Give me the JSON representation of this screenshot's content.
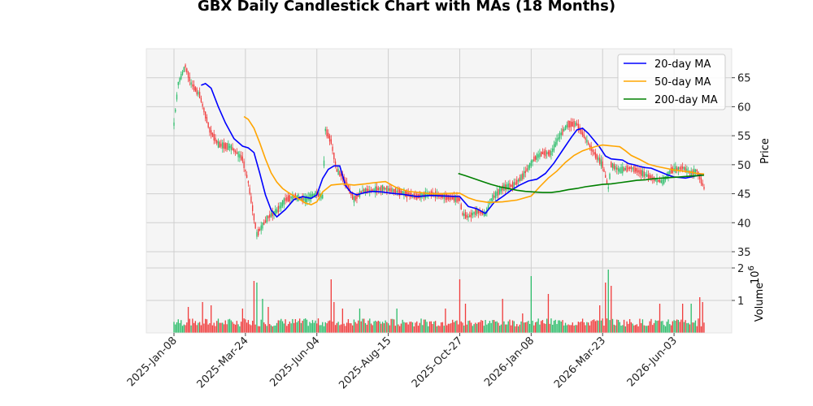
{
  "chart_data": {
    "type": "candlestick",
    "title": "GBX Daily Candlestick Chart with MAs (18 Months)",
    "ylabel": "Price",
    "volume_label": "Volume",
    "volume_exponent": "10^6",
    "volume_exponent_base": "10",
    "volume_exponent_power": "6",
    "ylim": [
      35,
      70
    ],
    "volume_ylim": [
      0,
      2.5
    ],
    "y_ticks": [
      35,
      40,
      45,
      50,
      55,
      60,
      65
    ],
    "volume_ticks": [
      1,
      2
    ],
    "x_ticks": [
      "2025-Jan-08",
      "2025-Mar-24",
      "2025-Jun-04",
      "2025-Aug-15",
      "2025-Oct-27",
      "2026-Jan-08",
      "2026-Mar-23",
      "2026-Jun-03"
    ],
    "x_tick_index": [
      0,
      50,
      100,
      150,
      200,
      250,
      300,
      350
    ],
    "n_days": 372,
    "legend_position": "top-right",
    "grid": true,
    "colors": {
      "up": "#2ebd6b",
      "down": "#f03c3c",
      "ma20": "#0000ff",
      "ma50": "#ffa500",
      "ma200": "#008000"
    },
    "price_path": [
      [
        0,
        57
      ],
      [
        3,
        64
      ],
      [
        8,
        67
      ],
      [
        12,
        64
      ],
      [
        18,
        62
      ],
      [
        25,
        56
      ],
      [
        31,
        53.5
      ],
      [
        40,
        53
      ],
      [
        48,
        51
      ],
      [
        52,
        47
      ],
      [
        58,
        38
      ],
      [
        66,
        41
      ],
      [
        72,
        42
      ],
      [
        78,
        44
      ],
      [
        84,
        44.5
      ],
      [
        92,
        44
      ],
      [
        100,
        45
      ],
      [
        104,
        44.5
      ],
      [
        106,
        56
      ],
      [
        110,
        54
      ],
      [
        114,
        49
      ],
      [
        118,
        48
      ],
      [
        122,
        46
      ],
      [
        126,
        44
      ],
      [
        132,
        45.5
      ],
      [
        138,
        45.5
      ],
      [
        146,
        46
      ],
      [
        154,
        45.5
      ],
      [
        162,
        45
      ],
      [
        170,
        44.5
      ],
      [
        180,
        45
      ],
      [
        190,
        44.5
      ],
      [
        200,
        44
      ],
      [
        202,
        41.5
      ],
      [
        206,
        41
      ],
      [
        212,
        42
      ],
      [
        218,
        41.5
      ],
      [
        222,
        44
      ],
      [
        230,
        46
      ],
      [
        238,
        46.5
      ],
      [
        244,
        48
      ],
      [
        252,
        51
      ],
      [
        258,
        52
      ],
      [
        264,
        52
      ],
      [
        270,
        55
      ],
      [
        276,
        57
      ],
      [
        282,
        57
      ],
      [
        288,
        54.5
      ],
      [
        294,
        52
      ],
      [
        300,
        50
      ],
      [
        304,
        46
      ],
      [
        306,
        50
      ],
      [
        312,
        49
      ],
      [
        320,
        49.5
      ],
      [
        328,
        48.5
      ],
      [
        336,
        47.5
      ],
      [
        342,
        47
      ],
      [
        348,
        49
      ],
      [
        356,
        49.5
      ],
      [
        362,
        48.5
      ],
      [
        366,
        49
      ],
      [
        371,
        46
      ]
    ],
    "series": [
      {
        "name": "20-day MA",
        "x": [
          19,
          22,
          26,
          31,
          36,
          42,
          48,
          52,
          56,
          60,
          64,
          68,
          72,
          78,
          84,
          90,
          96,
          100,
          104,
          108,
          112,
          116,
          120,
          124,
          128,
          132,
          136,
          140,
          146,
          152,
          160,
          170,
          180,
          190,
          200,
          206,
          212,
          218,
          224,
          230,
          236,
          242,
          248,
          254,
          260,
          266,
          272,
          278,
          282,
          286,
          290,
          294,
          298,
          302,
          306,
          310,
          314,
          318,
          322,
          326,
          330,
          334,
          338,
          342,
          346,
          350,
          354,
          358,
          362,
          366,
          371
        ],
        "y": [
          63.7,
          64,
          63.2,
          60,
          57.2,
          54.5,
          53.2,
          52.9,
          52.1,
          48.6,
          44.8,
          42.2,
          41,
          42.3,
          44,
          44.5,
          44.2,
          44.8,
          47.6,
          49.2,
          49.8,
          49.8,
          46.4,
          45.2,
          44.8,
          45.1,
          45.3,
          45.4,
          45.3,
          45.1,
          44.9,
          44.5,
          44.7,
          44.6,
          44.5,
          42.8,
          42.4,
          41.6,
          43.5,
          44.5,
          45.6,
          46.5,
          47.2,
          47.5,
          48.5,
          50.3,
          52.5,
          54.7,
          56,
          56.3,
          55.4,
          54.2,
          53,
          51.5,
          51,
          50.9,
          50.8,
          50.2,
          50,
          49.7,
          49.5,
          49.4,
          49,
          48.6,
          48.2,
          47.9,
          47.8,
          47.7,
          47.9,
          48.1,
          48.4
        ]
      },
      {
        "name": "50-day MA",
        "x": [
          49,
          52,
          56,
          60,
          64,
          68,
          72,
          76,
          80,
          86,
          92,
          96,
          100,
          104,
          110,
          118,
          126,
          134,
          140,
          148,
          156,
          164,
          172,
          180,
          188,
          196,
          200,
          206,
          212,
          220,
          230,
          240,
          250,
          256,
          262,
          268,
          274,
          280,
          286,
          292,
          296,
          300,
          304,
          308,
          312,
          316,
          320,
          326,
          332,
          338,
          344,
          350,
          356,
          362,
          366,
          371
        ],
        "y": [
          58.3,
          57.8,
          56.3,
          53.8,
          51,
          48.6,
          47,
          45.9,
          45.2,
          44.3,
          43.4,
          43.1,
          43.6,
          45.3,
          46.5,
          46.7,
          46.5,
          46.7,
          46.9,
          47.1,
          46,
          45.4,
          45.2,
          45,
          45,
          45.1,
          45.1,
          44.3,
          43.8,
          43.5,
          43.6,
          43.9,
          44.6,
          46.2,
          47.7,
          48.9,
          50.4,
          51.6,
          52.4,
          52.9,
          53.2,
          53.4,
          53.3,
          53.2,
          53.1,
          52.4,
          51.6,
          50.9,
          50.1,
          49.7,
          49.4,
          49.1,
          48.9,
          48.7,
          48.5,
          48.4
        ]
      },
      {
        "name": "200-day MA",
        "x": [
          199,
          204,
          210,
          216,
          222,
          228,
          234,
          240,
          246,
          252,
          258,
          264,
          270,
          276,
          282,
          288,
          294,
          300,
          306,
          312,
          318,
          324,
          330,
          336,
          342,
          348,
          354,
          360,
          366,
          371
        ],
        "y": [
          48.5,
          48.1,
          47.6,
          47.1,
          46.6,
          46.2,
          45.9,
          45.6,
          45.4,
          45.3,
          45.2,
          45.2,
          45.4,
          45.7,
          45.9,
          46.2,
          46.4,
          46.6,
          46.7,
          46.9,
          47.1,
          47.3,
          47.4,
          47.6,
          47.7,
          47.8,
          47.9,
          48,
          48.1,
          48.2
        ]
      }
    ],
    "volume_baseline": 0.2,
    "volume_spikes": [
      [
        10,
        0.8
      ],
      [
        20,
        0.95
      ],
      [
        26,
        0.85
      ],
      [
        48,
        0.75
      ],
      [
        56,
        1.6
      ],
      [
        58,
        1.55
      ],
      [
        62,
        1.05
      ],
      [
        66,
        0.8
      ],
      [
        110,
        1.65
      ],
      [
        112,
        0.95
      ],
      [
        118,
        0.75
      ],
      [
        130,
        0.75
      ],
      [
        156,
        0.75
      ],
      [
        190,
        0.75
      ],
      [
        200,
        1.65
      ],
      [
        204,
        0.9
      ],
      [
        230,
        1.05
      ],
      [
        244,
        0.6
      ],
      [
        250,
        1.75
      ],
      [
        262,
        1.2
      ],
      [
        298,
        0.85
      ],
      [
        302,
        1.55
      ],
      [
        304,
        1.95
      ],
      [
        306,
        1.45
      ],
      [
        340,
        0.9
      ],
      [
        356,
        0.9
      ],
      [
        362,
        0.9
      ],
      [
        368,
        1.1
      ],
      [
        370,
        0.95
      ]
    ]
  }
}
